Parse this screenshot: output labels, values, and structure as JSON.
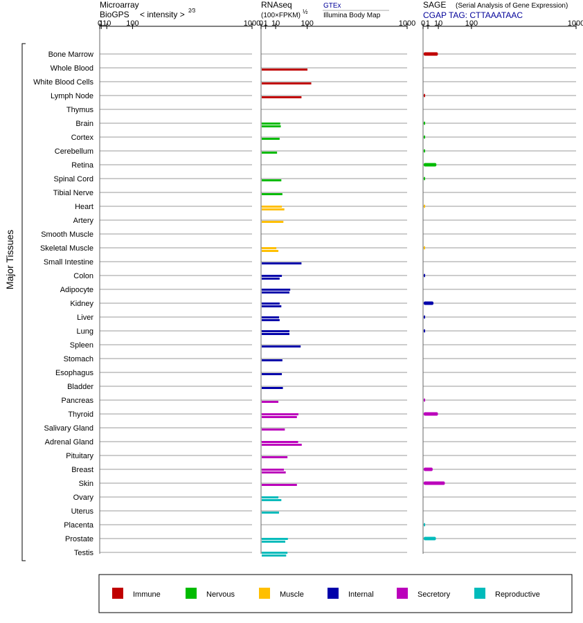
{
  "chart_data": {
    "type": "bar",
    "y_axis_label": "Major Tissues",
    "scale_note": "tick positions follow value^(2/3) for microarray and value^(1/2) for RNAseq/SAGE",
    "colors": {
      "Immune": "#c00000",
      "Nervous": "#00bb00",
      "Muscle": "#ffbf00",
      "Internal": "#0000aa",
      "Secretory": "#bb00bb",
      "Reproductive": "#00bbbb"
    },
    "tissues": [
      {
        "name": "Bone Marrow",
        "group": "Immune"
      },
      {
        "name": "Whole Blood",
        "group": "Immune"
      },
      {
        "name": "White Blood Cells",
        "group": "Immune"
      },
      {
        "name": "Lymph Node",
        "group": "Immune"
      },
      {
        "name": "Thymus",
        "group": "Immune"
      },
      {
        "name": "Brain",
        "group": "Nervous"
      },
      {
        "name": "Cortex",
        "group": "Nervous"
      },
      {
        "name": "Cerebellum",
        "group": "Nervous"
      },
      {
        "name": "Retina",
        "group": "Nervous"
      },
      {
        "name": "Spinal Cord",
        "group": "Nervous"
      },
      {
        "name": "Tibial Nerve",
        "group": "Nervous"
      },
      {
        "name": "Heart",
        "group": "Muscle"
      },
      {
        "name": "Artery",
        "group": "Muscle"
      },
      {
        "name": "Smooth Muscle",
        "group": "Muscle"
      },
      {
        "name": "Skeletal Muscle",
        "group": "Muscle"
      },
      {
        "name": "Small Intestine",
        "group": "Internal"
      },
      {
        "name": "Colon",
        "group": "Internal"
      },
      {
        "name": "Adipocyte",
        "group": "Internal"
      },
      {
        "name": "Kidney",
        "group": "Internal"
      },
      {
        "name": "Liver",
        "group": "Internal"
      },
      {
        "name": "Lung",
        "group": "Internal"
      },
      {
        "name": "Spleen",
        "group": "Internal"
      },
      {
        "name": "Stomach",
        "group": "Internal"
      },
      {
        "name": "Esophagus",
        "group": "Internal"
      },
      {
        "name": "Bladder",
        "group": "Internal"
      },
      {
        "name": "Pancreas",
        "group": "Secretory"
      },
      {
        "name": "Thyroid",
        "group": "Secretory"
      },
      {
        "name": "Salivary Gland",
        "group": "Secretory"
      },
      {
        "name": "Adrenal Gland",
        "group": "Secretory"
      },
      {
        "name": "Pituitary",
        "group": "Secretory"
      },
      {
        "name": "Breast",
        "group": "Secretory"
      },
      {
        "name": "Skin",
        "group": "Secretory"
      },
      {
        "name": "Ovary",
        "group": "Reproductive"
      },
      {
        "name": "Uterus",
        "group": "Reproductive"
      },
      {
        "name": "Placenta",
        "group": "Reproductive"
      },
      {
        "name": "Prostate",
        "group": "Reproductive"
      },
      {
        "name": "Testis",
        "group": "Reproductive"
      }
    ],
    "panels": [
      {
        "id": "microarray",
        "title_line1": "Microarray",
        "title_line2": "BioGPS",
        "axis_label": "< intensity >",
        "axis_exponent": "2⁄3",
        "exponent": 0.6667,
        "max": 1000,
        "ticks": [
          0,
          1,
          10,
          100,
          1000
        ],
        "values": {}
      },
      {
        "id": "rnaseq",
        "title_line1": "RNAseq",
        "title_line2": "(100×FPKM)",
        "axis_exponent": "½",
        "legend_top": "GTEx",
        "legend_bottom": "Illumina Body Map",
        "exponent": 0.5,
        "max": 1000,
        "ticks": [
          0,
          1,
          10,
          100,
          1000
        ],
        "values": {
          "Whole Blood": [
            98
          ],
          "White Blood Cells": [
            115
          ],
          "Lymph Node": [
            74
          ],
          "Brain": [
            16,
            17
          ],
          "Cortex": [
            15
          ],
          "Cerebellum": [
            11
          ],
          "Spinal Cord": [
            18
          ],
          "Tibial Nerve": [
            20
          ],
          "Heart": [
            19,
            24
          ],
          "Artery": [
            22
          ],
          "Skeletal Muscle": [
            10,
            13
          ],
          "Small Intestine": [
            74
          ],
          "Colon": [
            19,
            15
          ],
          "Adipocyte": [
            38,
            36
          ],
          "Kidney": [
            15,
            18
          ],
          "Liver": [
            14,
            15
          ],
          "Lung": [
            36,
            36
          ],
          "Spleen": [
            71
          ],
          "Stomach": [
            20
          ],
          "Esophagus": [
            19
          ],
          "Bladder": [
            21
          ],
          "Pancreas": [
            13
          ],
          "Thyroid": [
            63,
            58
          ],
          "Salivary Gland": [
            25
          ],
          "Adrenal Gland": [
            62,
            75
          ],
          "Pituitary": [
            31
          ],
          "Breast": [
            23,
            27
          ],
          "Skin": [
            58
          ],
          "Ovary": [
            13,
            18
          ],
          "Uterus": [
            14
          ],
          "Prostate": [
            32,
            26
          ],
          "Testis": [
            31,
            28
          ]
        }
      },
      {
        "id": "sage",
        "title_line1": "SAGE",
        "title_note": "(Serial Analysis of Gene Expression)",
        "title_line2": "CGAP TAG: CTTAAATAAC",
        "exponent": 0.5,
        "max": 1000,
        "ticks": [
          0,
          1,
          10,
          100,
          1000
        ],
        "values": {
          "Bone Marrow": [
            8.5
          ],
          "Lymph Node": [
            0.05
          ],
          "Brain": [
            0.05
          ],
          "Cortex": [
            0.05
          ],
          "Cerebellum": [
            0.05
          ],
          "Retina": [
            6.8
          ],
          "Spinal Cord": [
            0.05
          ],
          "Heart": [
            0.05
          ],
          "Skeletal Muscle": [
            0.05
          ],
          "Colon": [
            0.05
          ],
          "Kidney": [
            4
          ],
          "Liver": [
            0.05
          ],
          "Lung": [
            0.05
          ],
          "Pancreas": [
            0.05
          ],
          "Thyroid": [
            8.6
          ],
          "Breast": [
            3.4
          ],
          "Skin": [
            19
          ],
          "Placenta": [
            0.05
          ],
          "Prostate": [
            6.3
          ]
        }
      }
    ],
    "legend": [
      {
        "label": "Immune",
        "group": "Immune"
      },
      {
        "label": "Nervous",
        "group": "Nervous"
      },
      {
        "label": "Muscle",
        "group": "Muscle"
      },
      {
        "label": "Internal",
        "group": "Internal"
      },
      {
        "label": "Secretory",
        "group": "Secretory"
      },
      {
        "label": "Reproductive",
        "group": "Reproductive"
      }
    ]
  }
}
